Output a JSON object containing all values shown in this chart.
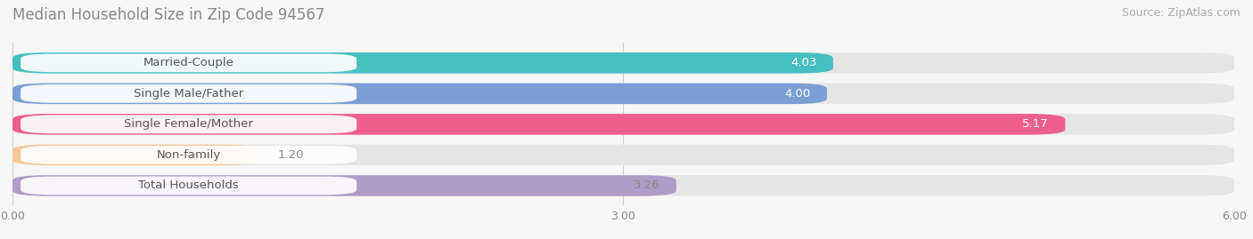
{
  "title": "Median Household Size in Zip Code 94567",
  "source": "Source: ZipAtlas.com",
  "categories": [
    "Married-Couple",
    "Single Male/Father",
    "Single Female/Mother",
    "Non-family",
    "Total Households"
  ],
  "values": [
    4.03,
    4.0,
    5.17,
    1.2,
    3.26
  ],
  "bar_colors": [
    "#45BFBF",
    "#7B9FD4",
    "#EE5F8E",
    "#F5C99A",
    "#B09CC8"
  ],
  "value_label_colors": [
    "white",
    "white",
    "white",
    "#888888",
    "#888888"
  ],
  "xlim": [
    0,
    6.0
  ],
  "xticks": [
    0.0,
    3.0,
    6.0
  ],
  "xtick_labels": [
    "0.00",
    "3.00",
    "6.00"
  ],
  "background_color": "#f7f7f7",
  "bar_bg_color": "#e5e5e5",
  "title_fontsize": 12,
  "source_fontsize": 9,
  "bar_label_fontsize": 9.5,
  "category_fontsize": 9.5,
  "label_threshold": 2.0
}
